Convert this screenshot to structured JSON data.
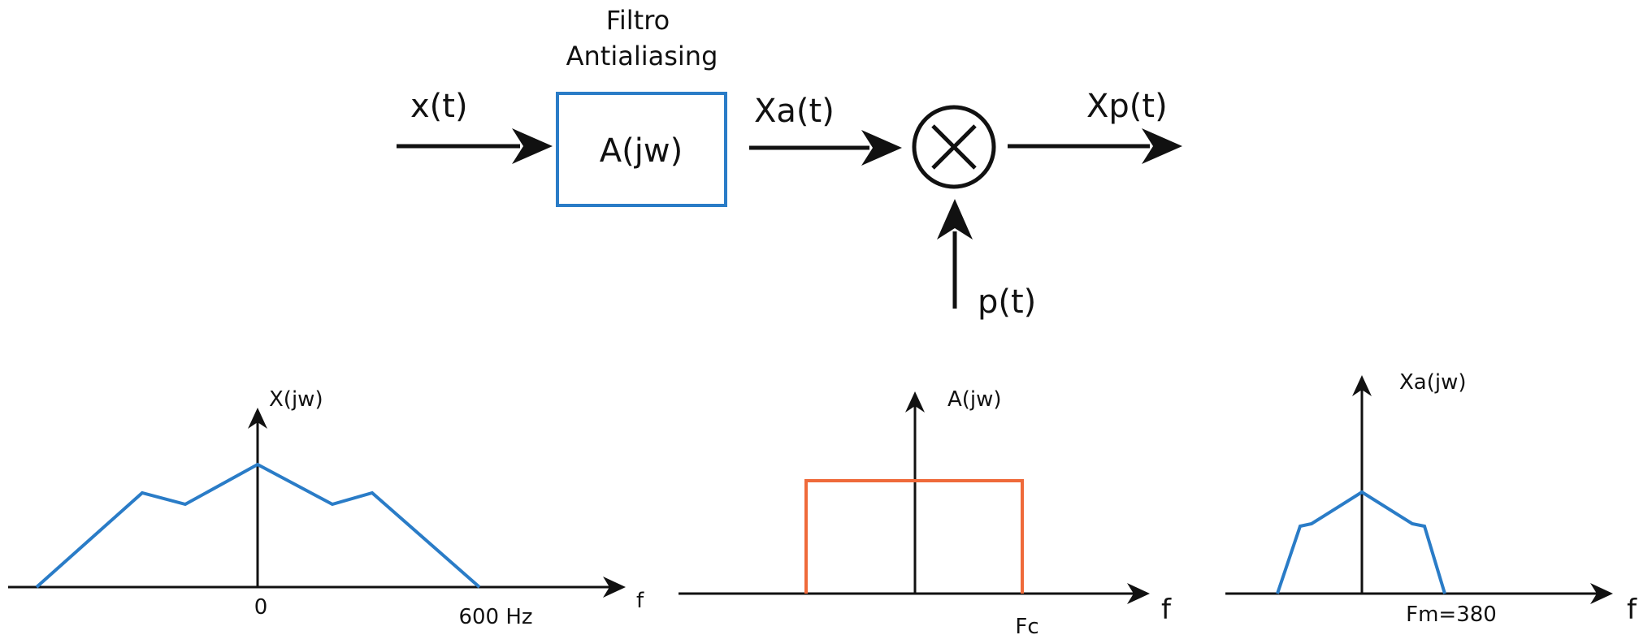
{
  "colors": {
    "ink": "#111111",
    "filter_box": "#2a7cc7",
    "spectrum_blue": "#2a7cc7",
    "filter_orange": "#ef6a3a"
  },
  "block_diagram": {
    "filter_title_line1": "Filtro",
    "filter_title_line2": "Antialiasing",
    "filter_block_label": "A(jw)",
    "input_label": "x(t)",
    "filtered_label": "Xa(t)",
    "output_label": "Xp(t)",
    "sampling_label": "p(t)",
    "multiplier_icon": "multiply-circle-icon"
  },
  "plots": {
    "input_spectrum": {
      "ylabel": "X(jw)",
      "xlabel": "f",
      "tick_zero": "0",
      "tick_max": "600 Hz"
    },
    "filter_response": {
      "ylabel": "A(jw)",
      "xlabel": "f",
      "tick_cutoff": "Fc"
    },
    "filtered_spectrum": {
      "ylabel": "Xa(jw)",
      "xlabel": "f",
      "tick_max": "Fm=380"
    }
  }
}
